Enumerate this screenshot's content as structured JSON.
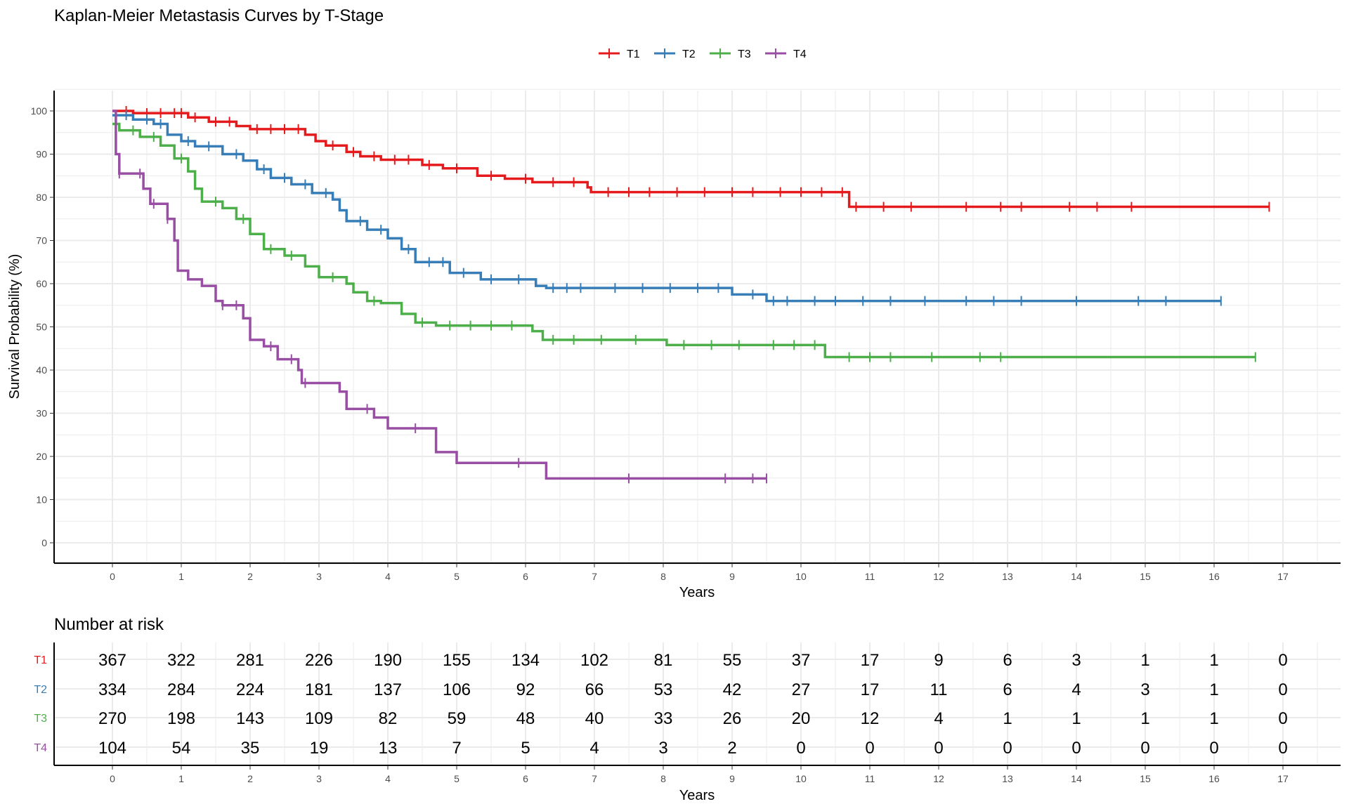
{
  "chart_data": [
    {
      "type": "line",
      "subtype": "kaplan-meier step",
      "title": "Kaplan-Meier Metastasis Curves by T-Stage",
      "xlabel": "Years",
      "ylabel": "Survival Probability (%)",
      "xlim": [
        0,
        17
      ],
      "ylim": [
        0,
        100
      ],
      "xticks": [
        0,
        1,
        2,
        3,
        4,
        5,
        6,
        7,
        8,
        9,
        10,
        11,
        12,
        13,
        14,
        15,
        16,
        17
      ],
      "yticks": [
        0,
        10,
        20,
        30,
        40,
        50,
        60,
        70,
        80,
        90,
        100
      ],
      "grid": true,
      "legend_position": "top",
      "series": [
        {
          "name": "T1",
          "color": "#E41A1C",
          "end": 16.8,
          "steps": [
            [
              0,
              100
            ],
            [
              0.3,
              99.5
            ],
            [
              1.1,
              98.5
            ],
            [
              1.4,
              97.5
            ],
            [
              1.8,
              96.5
            ],
            [
              2.0,
              95.8
            ],
            [
              2.8,
              94.5
            ],
            [
              2.95,
              93
            ],
            [
              3.1,
              92
            ],
            [
              3.4,
              90.5
            ],
            [
              3.6,
              89.5
            ],
            [
              3.9,
              88.7
            ],
            [
              4.5,
              87.5
            ],
            [
              4.8,
              86.7
            ],
            [
              5.3,
              85
            ],
            [
              5.7,
              84.3
            ],
            [
              6.1,
              83.5
            ],
            [
              6.9,
              82.3
            ],
            [
              6.95,
              81.2
            ],
            [
              10.7,
              77.8
            ]
          ],
          "censored": [
            0.2,
            0.5,
            0.7,
            0.9,
            1.0,
            1.2,
            1.5,
            1.7,
            2.1,
            2.3,
            2.5,
            2.7,
            3.2,
            3.5,
            3.8,
            4.1,
            4.3,
            4.6,
            5.0,
            5.5,
            6.0,
            6.4,
            6.7,
            7.2,
            7.5,
            7.8,
            8.2,
            8.6,
            9.0,
            9.3,
            9.7,
            10.0,
            10.3,
            10.6,
            10.8,
            11.2,
            11.6,
            12.4,
            12.9,
            13.2,
            13.9,
            14.3,
            14.8,
            16.8
          ]
        },
        {
          "name": "T2",
          "color": "#377EB8",
          "end": 16.1,
          "steps": [
            [
              0,
              99
            ],
            [
              0.3,
              98
            ],
            [
              0.6,
              97
            ],
            [
              0.8,
              94.5
            ],
            [
              1.0,
              93
            ],
            [
              1.2,
              91.8
            ],
            [
              1.6,
              90
            ],
            [
              1.9,
              88.5
            ],
            [
              2.1,
              86.5
            ],
            [
              2.3,
              84.5
            ],
            [
              2.6,
              83
            ],
            [
              2.9,
              81
            ],
            [
              3.2,
              79.5
            ],
            [
              3.3,
              77
            ],
            [
              3.4,
              74.5
            ],
            [
              3.7,
              72.5
            ],
            [
              4.0,
              70.5
            ],
            [
              4.2,
              68
            ],
            [
              4.4,
              65
            ],
            [
              4.9,
              62.5
            ],
            [
              5.35,
              61
            ],
            [
              6.15,
              59.5
            ],
            [
              6.3,
              59
            ],
            [
              9.0,
              57.5
            ],
            [
              9.5,
              56
            ]
          ],
          "censored": [
            0.2,
            0.5,
            0.7,
            1.1,
            1.4,
            1.8,
            2.2,
            2.5,
            2.8,
            3.1,
            3.6,
            3.9,
            4.3,
            4.6,
            4.8,
            5.1,
            5.5,
            5.9,
            6.4,
            6.6,
            6.8,
            7.3,
            7.7,
            8.1,
            8.5,
            8.8,
            9.3,
            9.6,
            9.8,
            10.2,
            10.5,
            10.9,
            11.3,
            11.8,
            12.4,
            12.8,
            13.2,
            14.0,
            14.9,
            15.3,
            16.1
          ]
        },
        {
          "name": "T3",
          "color": "#4DAF4A",
          "end": 16.6,
          "steps": [
            [
              0,
              97
            ],
            [
              0.1,
              95.5
            ],
            [
              0.4,
              94
            ],
            [
              0.7,
              92
            ],
            [
              0.9,
              89
            ],
            [
              1.1,
              86
            ],
            [
              1.2,
              82
            ],
            [
              1.3,
              79
            ],
            [
              1.6,
              77.5
            ],
            [
              1.8,
              75
            ],
            [
              2.0,
              71.5
            ],
            [
              2.2,
              68
            ],
            [
              2.5,
              66.5
            ],
            [
              2.8,
              64
            ],
            [
              3.0,
              61.5
            ],
            [
              3.4,
              60
            ],
            [
              3.5,
              58
            ],
            [
              3.7,
              56
            ],
            [
              3.9,
              55.5
            ],
            [
              4.2,
              53
            ],
            [
              4.4,
              51
            ],
            [
              4.7,
              50.3
            ],
            [
              6.1,
              49
            ],
            [
              6.25,
              47
            ],
            [
              8.05,
              45.8
            ],
            [
              10.35,
              43
            ]
          ],
          "censored": [
            0.3,
            0.6,
            1.0,
            1.5,
            1.9,
            2.3,
            2.6,
            3.2,
            3.8,
            4.5,
            4.9,
            5.2,
            5.5,
            5.8,
            6.4,
            6.7,
            7.1,
            7.6,
            8.3,
            8.7,
            9.1,
            9.6,
            9.9,
            10.2,
            10.7,
            11.0,
            11.3,
            11.9,
            12.6,
            12.9,
            16.6
          ]
        },
        {
          "name": "T4",
          "color": "#984EA3",
          "end": 9.5,
          "steps": [
            [
              0,
              100
            ],
            [
              0.05,
              90
            ],
            [
              0.1,
              85.5
            ],
            [
              0.45,
              82
            ],
            [
              0.55,
              78.5
            ],
            [
              0.8,
              75
            ],
            [
              0.9,
              70
            ],
            [
              0.95,
              63
            ],
            [
              1.1,
              61
            ],
            [
              1.3,
              59.5
            ],
            [
              1.5,
              56
            ],
            [
              1.6,
              55
            ],
            [
              1.9,
              52
            ],
            [
              2.0,
              47
            ],
            [
              2.2,
              45.5
            ],
            [
              2.4,
              42.5
            ],
            [
              2.7,
              40
            ],
            [
              2.75,
              37
            ],
            [
              3.3,
              35
            ],
            [
              3.4,
              31
            ],
            [
              3.8,
              29
            ],
            [
              4.0,
              26.5
            ],
            [
              4.7,
              21
            ],
            [
              5.0,
              18.5
            ],
            [
              6.3,
              14.9
            ]
          ],
          "censored": [
            0.1,
            0.4,
            0.6,
            0.8,
            1.6,
            1.8,
            2.3,
            2.6,
            2.8,
            3.7,
            4.4,
            5.9,
            7.5,
            8.9,
            9.3,
            9.5
          ]
        }
      ]
    },
    {
      "type": "table",
      "title": "Number at risk",
      "xlabel": "Years",
      "xticks": [
        0,
        1,
        2,
        3,
        4,
        5,
        6,
        7,
        8,
        9,
        10,
        11,
        12,
        13,
        14,
        15,
        16,
        17
      ],
      "rows": [
        {
          "name": "T1",
          "color": "#E41A1C",
          "values": [
            367,
            322,
            281,
            226,
            190,
            155,
            134,
            102,
            81,
            55,
            37,
            17,
            9,
            6,
            3,
            1,
            1,
            0
          ]
        },
        {
          "name": "T2",
          "color": "#377EB8",
          "values": [
            334,
            284,
            224,
            181,
            137,
            106,
            92,
            66,
            53,
            42,
            27,
            17,
            11,
            6,
            4,
            3,
            1,
            0
          ]
        },
        {
          "name": "T3",
          "color": "#4DAF4A",
          "values": [
            270,
            198,
            143,
            109,
            82,
            59,
            48,
            40,
            33,
            26,
            20,
            12,
            4,
            1,
            1,
            1,
            1,
            0
          ]
        },
        {
          "name": "T4",
          "color": "#984EA3",
          "values": [
            104,
            54,
            35,
            19,
            13,
            7,
            5,
            4,
            3,
            2,
            0,
            0,
            0,
            0,
            0,
            0,
            0,
            0
          ]
        }
      ]
    }
  ]
}
